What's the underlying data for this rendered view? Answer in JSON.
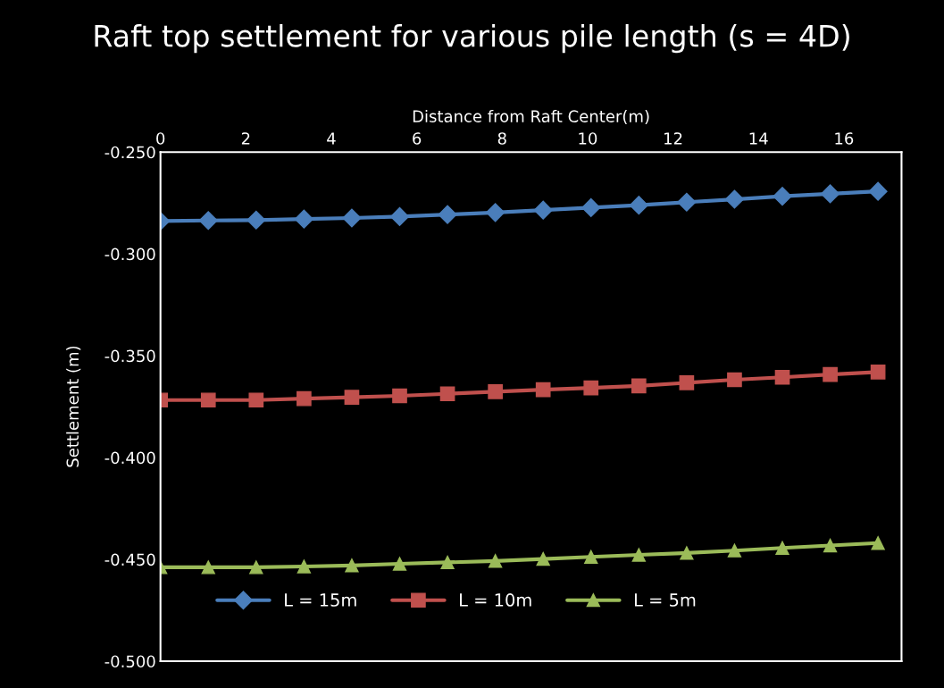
{
  "chart_data": {
    "type": "line",
    "title": "Raft top settlement for various pile length (s = 4D)",
    "xlabel": "Distance from Raft Center(m)",
    "ylabel": "Settlement (m)",
    "x": [
      0,
      1.12,
      2.24,
      3.36,
      4.48,
      5.6,
      6.72,
      7.84,
      8.96,
      10.08,
      11.2,
      12.32,
      13.44,
      14.56,
      15.68,
      16.8
    ],
    "xlim": [
      0,
      17.35
    ],
    "xticks": [
      0,
      2,
      4,
      6,
      8,
      10,
      12,
      14,
      16
    ],
    "ylim": [
      -0.5,
      -0.25
    ],
    "yticks": [
      {
        "value": -0.5,
        "label": "-0.500"
      },
      {
        "value": -0.45,
        "label": "-0.450"
      },
      {
        "value": -0.4,
        "label": "-0.400"
      },
      {
        "value": -0.35,
        "label": "-0.350"
      },
      {
        "value": -0.3,
        "label": "-0.300"
      },
      {
        "value": -0.25,
        "label": "-0.250"
      }
    ],
    "grid": false,
    "legend": "bottom",
    "line_style": "solid",
    "series": [
      {
        "name": "L = 15m",
        "color": "#4a7ebb",
        "marker": "diamond",
        "values": [
          -0.2839,
          -0.2836,
          -0.2834,
          -0.2829,
          -0.2824,
          -0.2817,
          -0.2807,
          -0.2797,
          -0.2785,
          -0.2773,
          -0.2761,
          -0.2746,
          -0.2732,
          -0.2717,
          -0.2705,
          -0.2693
        ]
      },
      {
        "name": "L = 10m",
        "color": "#c0504d",
        "marker": "square",
        "values": [
          -0.3718,
          -0.3718,
          -0.3718,
          -0.3711,
          -0.3704,
          -0.3697,
          -0.3687,
          -0.3677,
          -0.3667,
          -0.3658,
          -0.3648,
          -0.3633,
          -0.3618,
          -0.3606,
          -0.3592,
          -0.358
        ]
      },
      {
        "name": "L = 5m",
        "color": "#9bbb59",
        "marker": "triangle",
        "values": [
          -0.4539,
          -0.4539,
          -0.4539,
          -0.4535,
          -0.453,
          -0.4522,
          -0.4515,
          -0.4508,
          -0.4498,
          -0.4488,
          -0.4478,
          -0.4469,
          -0.4457,
          -0.4444,
          -0.4432,
          -0.442
        ]
      }
    ]
  }
}
